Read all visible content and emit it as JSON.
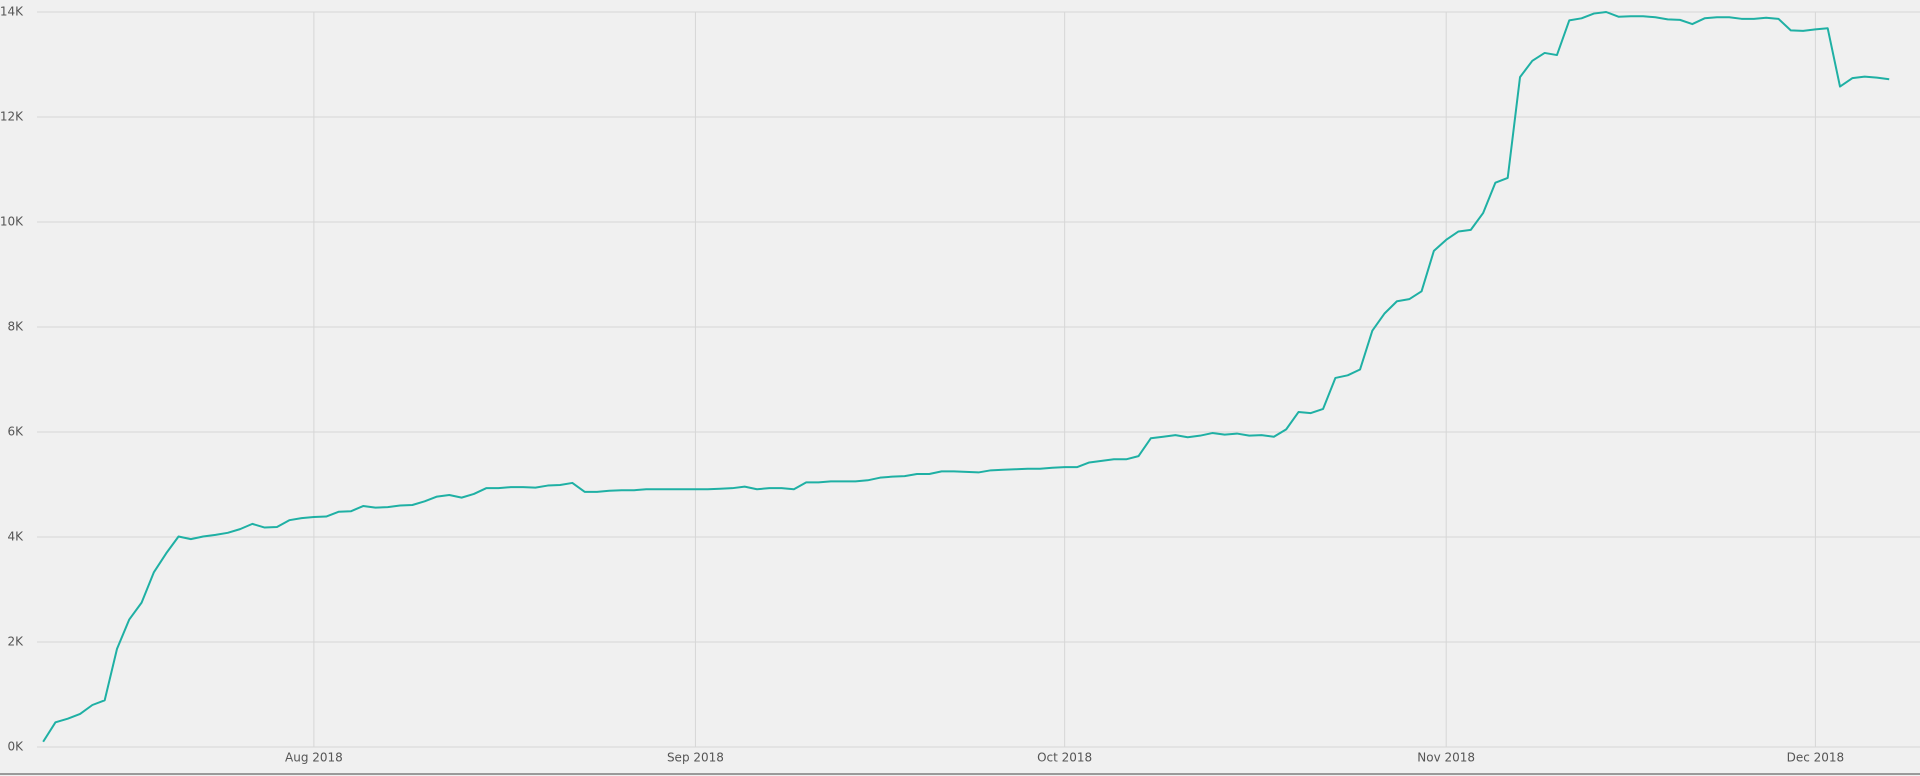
{
  "chart_data": {
    "type": "line",
    "values": [
      100,
      470,
      540,
      630,
      800,
      890,
      1870,
      2430,
      2750,
      3330,
      3690,
      4010,
      3960,
      4010,
      4040,
      4080,
      4150,
      4250,
      4180,
      4190,
      4320,
      4360,
      4380,
      4390,
      4480,
      4490,
      4590,
      4560,
      4570,
      4600,
      4610,
      4680,
      4770,
      4800,
      4750,
      4820,
      4930,
      4930,
      4950,
      4950,
      4940,
      4980,
      4990,
      5030,
      4860,
      4860,
      4880,
      4890,
      4890,
      4910,
      4910,
      4910,
      4910,
      4910,
      4910,
      4920,
      4930,
      4960,
      4910,
      4930,
      4930,
      4910,
      5040,
      5040,
      5060,
      5060,
      5060,
      5080,
      5130,
      5150,
      5160,
      5200,
      5200,
      5250,
      5250,
      5240,
      5230,
      5270,
      5280,
      5290,
      5300,
      5300,
      5320,
      5330,
      5330,
      5420,
      5450,
      5480,
      5480,
      5540,
      5880,
      5910,
      5940,
      5900,
      5930,
      5980,
      5950,
      5970,
      5930,
      5940,
      5910,
      6050,
      6380,
      6360,
      6440,
      7030,
      7080,
      7190,
      7930,
      8260,
      8490,
      8530,
      8680,
      9450,
      9660,
      9820,
      9850,
      10170,
      10750,
      10840,
      12760,
      13070,
      13220,
      13180,
      13840,
      13880,
      13970,
      14000,
      13910,
      13920,
      13920,
      13900,
      13860,
      13850,
      13770,
      13880,
      13900,
      13900,
      13870,
      13870,
      13890,
      13870,
      13650,
      13640,
      13670,
      13690,
      12580,
      12740,
      12770,
      12750,
      12720
    ],
    "color": "#1fb0a4",
    "xlim": [
      -0.5,
      152.5
    ],
    "xticks": [
      {
        "value": 22,
        "label": "Aug 2018"
      },
      {
        "value": 53,
        "label": "Sep 2018"
      },
      {
        "value": 83,
        "label": "Oct 2018"
      },
      {
        "value": 114,
        "label": "Nov 2018"
      },
      {
        "value": 144,
        "label": "Dec 2018"
      }
    ],
    "ylim": [
      0,
      14000
    ],
    "yticks": [
      {
        "value": 0,
        "label": "0K"
      },
      {
        "value": 2000,
        "label": "2K"
      },
      {
        "value": 4000,
        "label": "4K"
      },
      {
        "value": 6000,
        "label": "6K"
      },
      {
        "value": 8000,
        "label": "8K"
      },
      {
        "value": 10000,
        "label": "10K"
      },
      {
        "value": 12000,
        "label": "12K"
      },
      {
        "value": 14000,
        "label": "14K"
      }
    ],
    "grid": true
  }
}
